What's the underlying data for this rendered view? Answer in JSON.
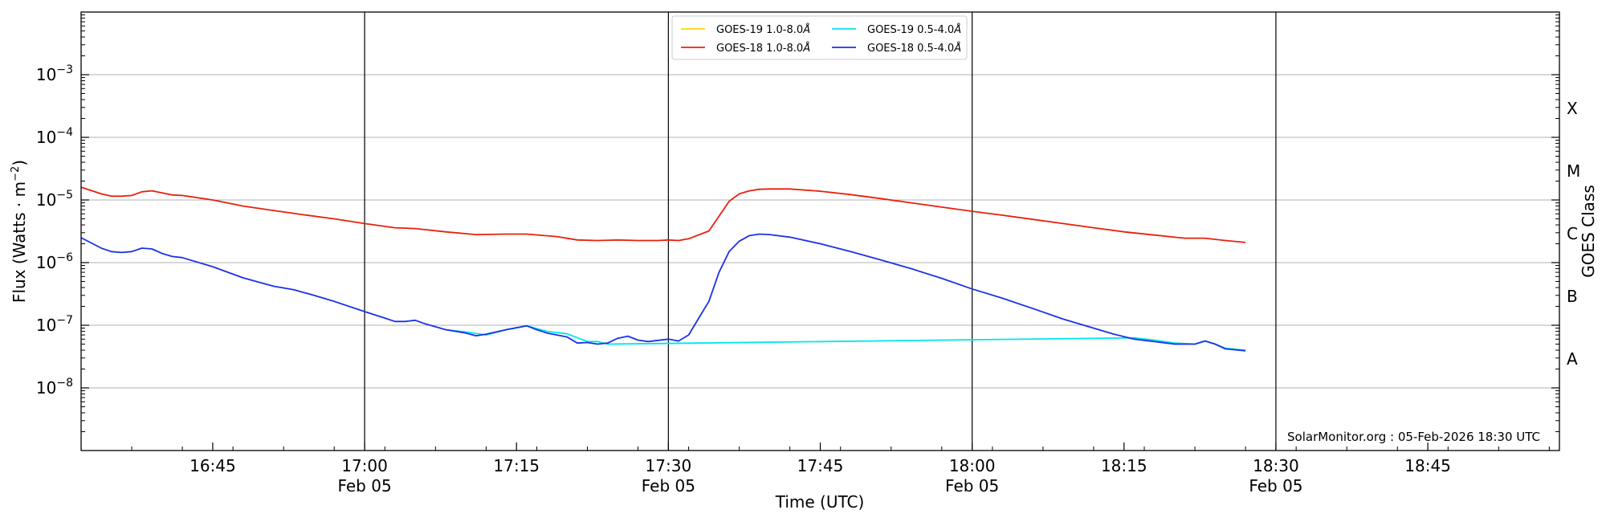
{
  "chart_data": {
    "type": "line",
    "y_scale": "log",
    "ylim": [
      1e-09,
      0.01
    ],
    "xlim": [
      "16:32",
      "18:58"
    ],
    "xlabel": "Time (UTC)",
    "ylabel_text": "Flux (Watts · m",
    "ylabel_sup": "−2",
    "ylabel_close": ")",
    "y2label": "GOES Class",
    "grid": "horizontal",
    "legend_placement": "top-center",
    "y_ticks": [
      {
        "exp": "-3",
        "value": 0.001
      },
      {
        "exp": "-4",
        "value": 0.0001
      },
      {
        "exp": "-5",
        "value": 1e-05
      },
      {
        "exp": "-6",
        "value": 1e-06
      },
      {
        "exp": "-7",
        "value": 1e-07
      },
      {
        "exp": "-8",
        "value": 1e-08
      }
    ],
    "x_ticks": [
      {
        "time": "16:45",
        "label": "16:45",
        "date": ""
      },
      {
        "time": "17:00",
        "label": "17:00",
        "date": "Feb 05"
      },
      {
        "time": "17:15",
        "label": "17:15",
        "date": ""
      },
      {
        "time": "17:30",
        "label": "17:30",
        "date": "Feb 05"
      },
      {
        "time": "17:45",
        "label": "17:45",
        "date": ""
      },
      {
        "time": "18:00",
        "label": "18:00",
        "date": "Feb 05"
      },
      {
        "time": "18:15",
        "label": "18:15",
        "date": ""
      },
      {
        "time": "18:30",
        "label": "18:30",
        "date": "Feb 05"
      },
      {
        "time": "18:45",
        "label": "18:45",
        "date": ""
      }
    ],
    "vertical_lines": [
      "17:00",
      "17:30",
      "18:00",
      "18:30"
    ],
    "goes_classes": [
      {
        "label": "X",
        "value": 0.0003
      },
      {
        "label": "M",
        "value": 3e-05
      },
      {
        "label": "C",
        "value": 3e-06
      },
      {
        "label": "B",
        "value": 3e-07
      },
      {
        "label": "A",
        "value": 3e-08
      }
    ],
    "legend": [
      {
        "series": 0,
        "label_prefix": "GOES-19 1.0-8.0",
        "unit": "Å"
      },
      {
        "series": 2,
        "label_prefix": "GOES-19 0.5-4.0",
        "unit": "Å"
      },
      {
        "series": 1,
        "label_prefix": "GOES-18 1.0-8.0",
        "unit": "Å"
      },
      {
        "series": 3,
        "label_prefix": "GOES-18 0.5-4.0",
        "unit": "Å"
      }
    ],
    "series": [
      {
        "name": "GOES-19 1.0-8.0Å",
        "color": "#ffd700",
        "points": []
      },
      {
        "name": "GOES-18 1.0-8.0Å",
        "color": "#e8200c",
        "points": [
          [
            "16:32",
            1.6e-05
          ],
          [
            "16:34",
            1.25e-05
          ],
          [
            "16:35",
            1.15e-05
          ],
          [
            "16:36",
            1.15e-05
          ],
          [
            "16:37",
            1.18e-05
          ],
          [
            "16:38",
            1.35e-05
          ],
          [
            "16:39",
            1.4e-05
          ],
          [
            "16:41",
            1.2e-05
          ],
          [
            "16:42",
            1.18e-05
          ],
          [
            "16:45",
            1e-05
          ],
          [
            "16:48",
            8e-06
          ],
          [
            "16:51",
            6.8e-06
          ],
          [
            "16:54",
            5.8e-06
          ],
          [
            "16:57",
            5e-06
          ],
          [
            "17:00",
            4.2e-06
          ],
          [
            "17:03",
            3.6e-06
          ],
          [
            "17:05",
            3.5e-06
          ],
          [
            "17:08",
            3.1e-06
          ],
          [
            "17:11",
            2.8e-06
          ],
          [
            "17:14",
            2.85e-06
          ],
          [
            "17:16",
            2.85e-06
          ],
          [
            "17:19",
            2.6e-06
          ],
          [
            "17:21",
            2.3e-06
          ],
          [
            "17:23",
            2.25e-06
          ],
          [
            "17:25",
            2.3e-06
          ],
          [
            "17:27",
            2.25e-06
          ],
          [
            "17:29",
            2.25e-06
          ],
          [
            "17:30",
            2.3e-06
          ],
          [
            "17:31",
            2.25e-06
          ],
          [
            "17:32",
            2.4e-06
          ],
          [
            "17:34",
            3.2e-06
          ],
          [
            "17:35",
            5.5e-06
          ],
          [
            "17:36",
            9.5e-06
          ],
          [
            "17:37",
            1.25e-05
          ],
          [
            "17:38",
            1.4e-05
          ],
          [
            "17:39",
            1.48e-05
          ],
          [
            "17:40",
            1.5e-05
          ],
          [
            "17:42",
            1.5e-05
          ],
          [
            "17:45",
            1.38e-05
          ],
          [
            "17:48",
            1.22e-05
          ],
          [
            "17:51",
            1.05e-05
          ],
          [
            "17:54",
            9e-06
          ],
          [
            "17:57",
            7.7e-06
          ],
          [
            "18:00",
            6.6e-06
          ],
          [
            "18:03",
            5.7e-06
          ],
          [
            "18:06",
            4.9e-06
          ],
          [
            "18:09",
            4.2e-06
          ],
          [
            "18:12",
            3.6e-06
          ],
          [
            "18:15",
            3.1e-06
          ],
          [
            "18:18",
            2.75e-06
          ],
          [
            "18:21",
            2.45e-06
          ],
          [
            "18:23",
            2.45e-06
          ],
          [
            "18:25",
            2.25e-06
          ],
          [
            "18:27",
            2.1e-06
          ]
        ]
      },
      {
        "name": "GOES-19 0.5-4.0Å",
        "color": "#00e5ee",
        "points": [
          [
            "17:08",
            8.5e-08
          ],
          [
            "17:10",
            7.8e-08
          ],
          [
            "17:12",
            7e-08
          ],
          [
            "17:14",
            8.5e-08
          ],
          [
            "17:16",
            9.8e-08
          ],
          [
            "17:18",
            8e-08
          ],
          [
            "17:20",
            7.3e-08
          ],
          [
            "17:22",
            5.5e-08
          ],
          [
            "17:23",
            5.5e-08
          ],
          [
            "17:24",
            5e-08
          ],
          [
            "18:16",
            6.3e-08
          ],
          [
            "18:18",
            5.8e-08
          ],
          [
            "18:20",
            5.2e-08
          ],
          [
            "18:22",
            5e-08
          ],
          [
            "18:23",
            5.6e-08
          ],
          [
            "18:24",
            5e-08
          ],
          [
            "18:25",
            4.3e-08
          ],
          [
            "18:27",
            4e-08
          ]
        ]
      },
      {
        "name": "GOES-18 0.5-4.0Å",
        "color": "#1a32e6",
        "points": [
          [
            "16:32",
            2.5e-06
          ],
          [
            "16:34",
            1.7e-06
          ],
          [
            "16:35",
            1.5e-06
          ],
          [
            "16:36",
            1.45e-06
          ],
          [
            "16:37",
            1.5e-06
          ],
          [
            "16:38",
            1.7e-06
          ],
          [
            "16:39",
            1.65e-06
          ],
          [
            "16:40",
            1.4e-06
          ],
          [
            "16:41",
            1.25e-06
          ],
          [
            "16:42",
            1.2e-06
          ],
          [
            "16:45",
            8.6e-07
          ],
          [
            "16:48",
            5.7e-07
          ],
          [
            "16:51",
            4.2e-07
          ],
          [
            "16:53",
            3.7e-07
          ],
          [
            "16:55",
            3e-07
          ],
          [
            "16:57",
            2.4e-07
          ],
          [
            "17:00",
            1.65e-07
          ],
          [
            "17:02",
            1.3e-07
          ],
          [
            "17:03",
            1.15e-07
          ],
          [
            "17:04",
            1.15e-07
          ],
          [
            "17:05",
            1.2e-07
          ],
          [
            "17:06",
            1.05e-07
          ],
          [
            "17:08",
            8.5e-08
          ],
          [
            "17:10",
            7.5e-08
          ],
          [
            "17:11",
            6.8e-08
          ],
          [
            "17:12",
            7.2e-08
          ],
          [
            "17:14",
            8.5e-08
          ],
          [
            "17:16",
            9.8e-08
          ],
          [
            "17:17",
            8.5e-08
          ],
          [
            "17:18",
            7.5e-08
          ],
          [
            "17:19",
            7e-08
          ],
          [
            "17:20",
            6.5e-08
          ],
          [
            "17:21",
            5.2e-08
          ],
          [
            "17:22",
            5.3e-08
          ],
          [
            "17:23",
            5e-08
          ],
          [
            "17:24",
            5.2e-08
          ],
          [
            "17:25",
            6.2e-08
          ],
          [
            "17:26",
            6.7e-08
          ],
          [
            "17:27",
            5.8e-08
          ],
          [
            "17:28",
            5.5e-08
          ],
          [
            "17:30",
            6e-08
          ],
          [
            "17:31",
            5.6e-08
          ],
          [
            "17:32",
            7e-08
          ],
          [
            "17:33",
            1.3e-07
          ],
          [
            "17:34",
            2.4e-07
          ],
          [
            "17:35",
            7e-07
          ],
          [
            "17:36",
            1.5e-06
          ],
          [
            "17:37",
            2.2e-06
          ],
          [
            "17:38",
            2.7e-06
          ],
          [
            "17:39",
            2.85e-06
          ],
          [
            "17:40",
            2.8e-06
          ],
          [
            "17:42",
            2.55e-06
          ],
          [
            "17:45",
            2e-06
          ],
          [
            "17:48",
            1.5e-06
          ],
          [
            "17:51",
            1.1e-06
          ],
          [
            "17:54",
            8e-07
          ],
          [
            "17:57",
            5.6e-07
          ],
          [
            "18:00",
            3.8e-07
          ],
          [
            "18:03",
            2.7e-07
          ],
          [
            "18:06",
            1.85e-07
          ],
          [
            "18:09",
            1.25e-07
          ],
          [
            "18:12",
            9e-08
          ],
          [
            "18:14",
            7.2e-08
          ],
          [
            "18:16",
            6e-08
          ],
          [
            "18:18",
            5.5e-08
          ],
          [
            "18:20",
            5e-08
          ],
          [
            "18:22",
            5e-08
          ],
          [
            "18:23",
            5.6e-08
          ],
          [
            "18:24",
            5e-08
          ],
          [
            "18:25",
            4.2e-08
          ],
          [
            "18:27",
            3.9e-08
          ]
        ]
      }
    ]
  },
  "credit": "SolarMonitor.org : 05-Feb-2026 18:30 UTC"
}
